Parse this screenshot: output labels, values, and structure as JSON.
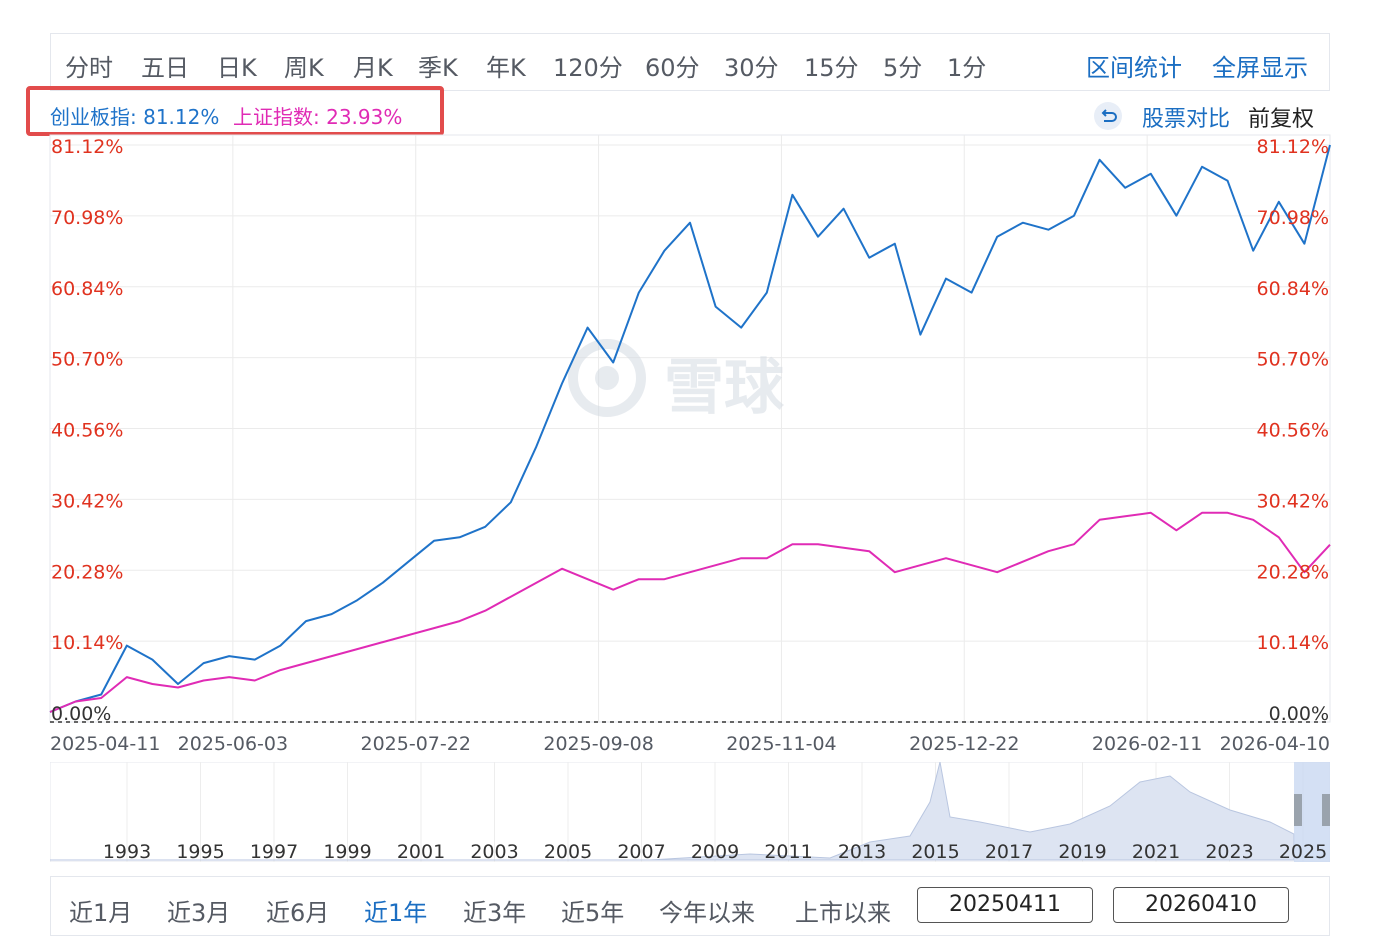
{
  "period_tabs": [
    "分时",
    "五日",
    "日K",
    "周K",
    "月K",
    "季K",
    "年K",
    "120分",
    "60分",
    "30分",
    "15分",
    "5分",
    "1分"
  ],
  "tools": {
    "range_stats": "区间统计",
    "fullscreen": "全屏显示"
  },
  "legend": {
    "series1": "创业板指: 81.12%",
    "series2": "上证指数: 23.93%"
  },
  "compare": {
    "label": "股票对比",
    "adjust": "前复权"
  },
  "watermark": "雪球",
  "colors": {
    "series1": "#1f73c9",
    "series2": "#e02bb5",
    "axis_label": "#e0321f",
    "grid": "#ebebeb",
    "accent": "#1b6ec2"
  },
  "chart_data": {
    "type": "line",
    "y_axis": {
      "ylim": [
        0,
        81.12
      ],
      "tick_values": [
        0,
        10.14,
        20.28,
        30.42,
        40.56,
        50.7,
        60.84,
        70.98,
        81.12
      ],
      "tick_labels": [
        "0.00%",
        "10.14%",
        "20.28%",
        "30.42%",
        "40.56%",
        "50.70%",
        "60.84%",
        "70.98%",
        "81.12%"
      ]
    },
    "x_tick_labels": [
      "2025-04-11",
      "2025-06-03",
      "2025-07-22",
      "2025-09-08",
      "2025-11-04",
      "2025-12-22",
      "2026-02-11",
      "2026-04-10"
    ],
    "series": [
      {
        "name": "创业板指",
        "color": "#1f73c9",
        "x": [
          0,
          2,
          4,
          6,
          8,
          10,
          12,
          14,
          16,
          18,
          20,
          22,
          24,
          26,
          28,
          30,
          32,
          34,
          36,
          38,
          40,
          42,
          44,
          46,
          48,
          50,
          52,
          54,
          56,
          58,
          60,
          62,
          64,
          66,
          68,
          70,
          72,
          74,
          76,
          78,
          80,
          82,
          84,
          86,
          88,
          90,
          92,
          94,
          96,
          98,
          100
        ],
        "values": [
          0,
          1.5,
          2.5,
          9.5,
          7.5,
          4,
          7,
          8,
          7.5,
          9.5,
          13,
          14,
          16,
          18.5,
          21.5,
          24.5,
          25,
          26.5,
          30,
          38,
          47,
          55,
          50,
          60,
          66,
          70,
          58,
          55,
          60,
          74,
          68,
          72,
          65,
          67,
          54,
          62,
          60,
          68,
          70,
          69,
          71,
          79,
          75,
          77,
          71,
          78,
          76,
          66,
          73,
          67,
          81.12
        ]
      },
      {
        "name": "上证指数",
        "color": "#e02bb5",
        "x": [
          0,
          2,
          4,
          6,
          8,
          10,
          12,
          14,
          16,
          18,
          20,
          22,
          24,
          26,
          28,
          30,
          32,
          34,
          36,
          38,
          40,
          42,
          44,
          46,
          48,
          50,
          52,
          54,
          56,
          58,
          60,
          62,
          64,
          66,
          68,
          70,
          72,
          74,
          76,
          78,
          80,
          82,
          84,
          86,
          88,
          90,
          92,
          94,
          96,
          98,
          100
        ],
        "values": [
          0,
          1.5,
          2,
          5,
          4,
          3.5,
          4.5,
          5,
          4.5,
          6,
          7,
          8,
          9,
          10,
          11,
          12,
          13,
          14.5,
          16.5,
          18.5,
          20.5,
          19,
          17.5,
          19,
          19,
          20,
          21,
          22,
          22,
          24,
          24,
          23.5,
          23,
          20,
          21,
          22,
          21,
          20,
          21.5,
          23,
          24,
          27.5,
          28,
          28.5,
          26,
          28.5,
          28.5,
          27.5,
          25,
          20,
          23.93
        ]
      }
    ]
  },
  "navigator": {
    "year_labels": [
      "1993",
      "1995",
      "1997",
      "1999",
      "2001",
      "2003",
      "2005",
      "2007",
      "2009",
      "2011",
      "2013",
      "2015",
      "2017",
      "2019",
      "2021",
      "2023",
      "2025"
    ]
  },
  "ranges": {
    "items": [
      "近1月",
      "近3月",
      "近6月",
      "近1年",
      "近3年",
      "近5年",
      "今年以来",
      "上市以来"
    ],
    "active": "近1年",
    "start_date": "20250411",
    "end_date": "20260410"
  }
}
